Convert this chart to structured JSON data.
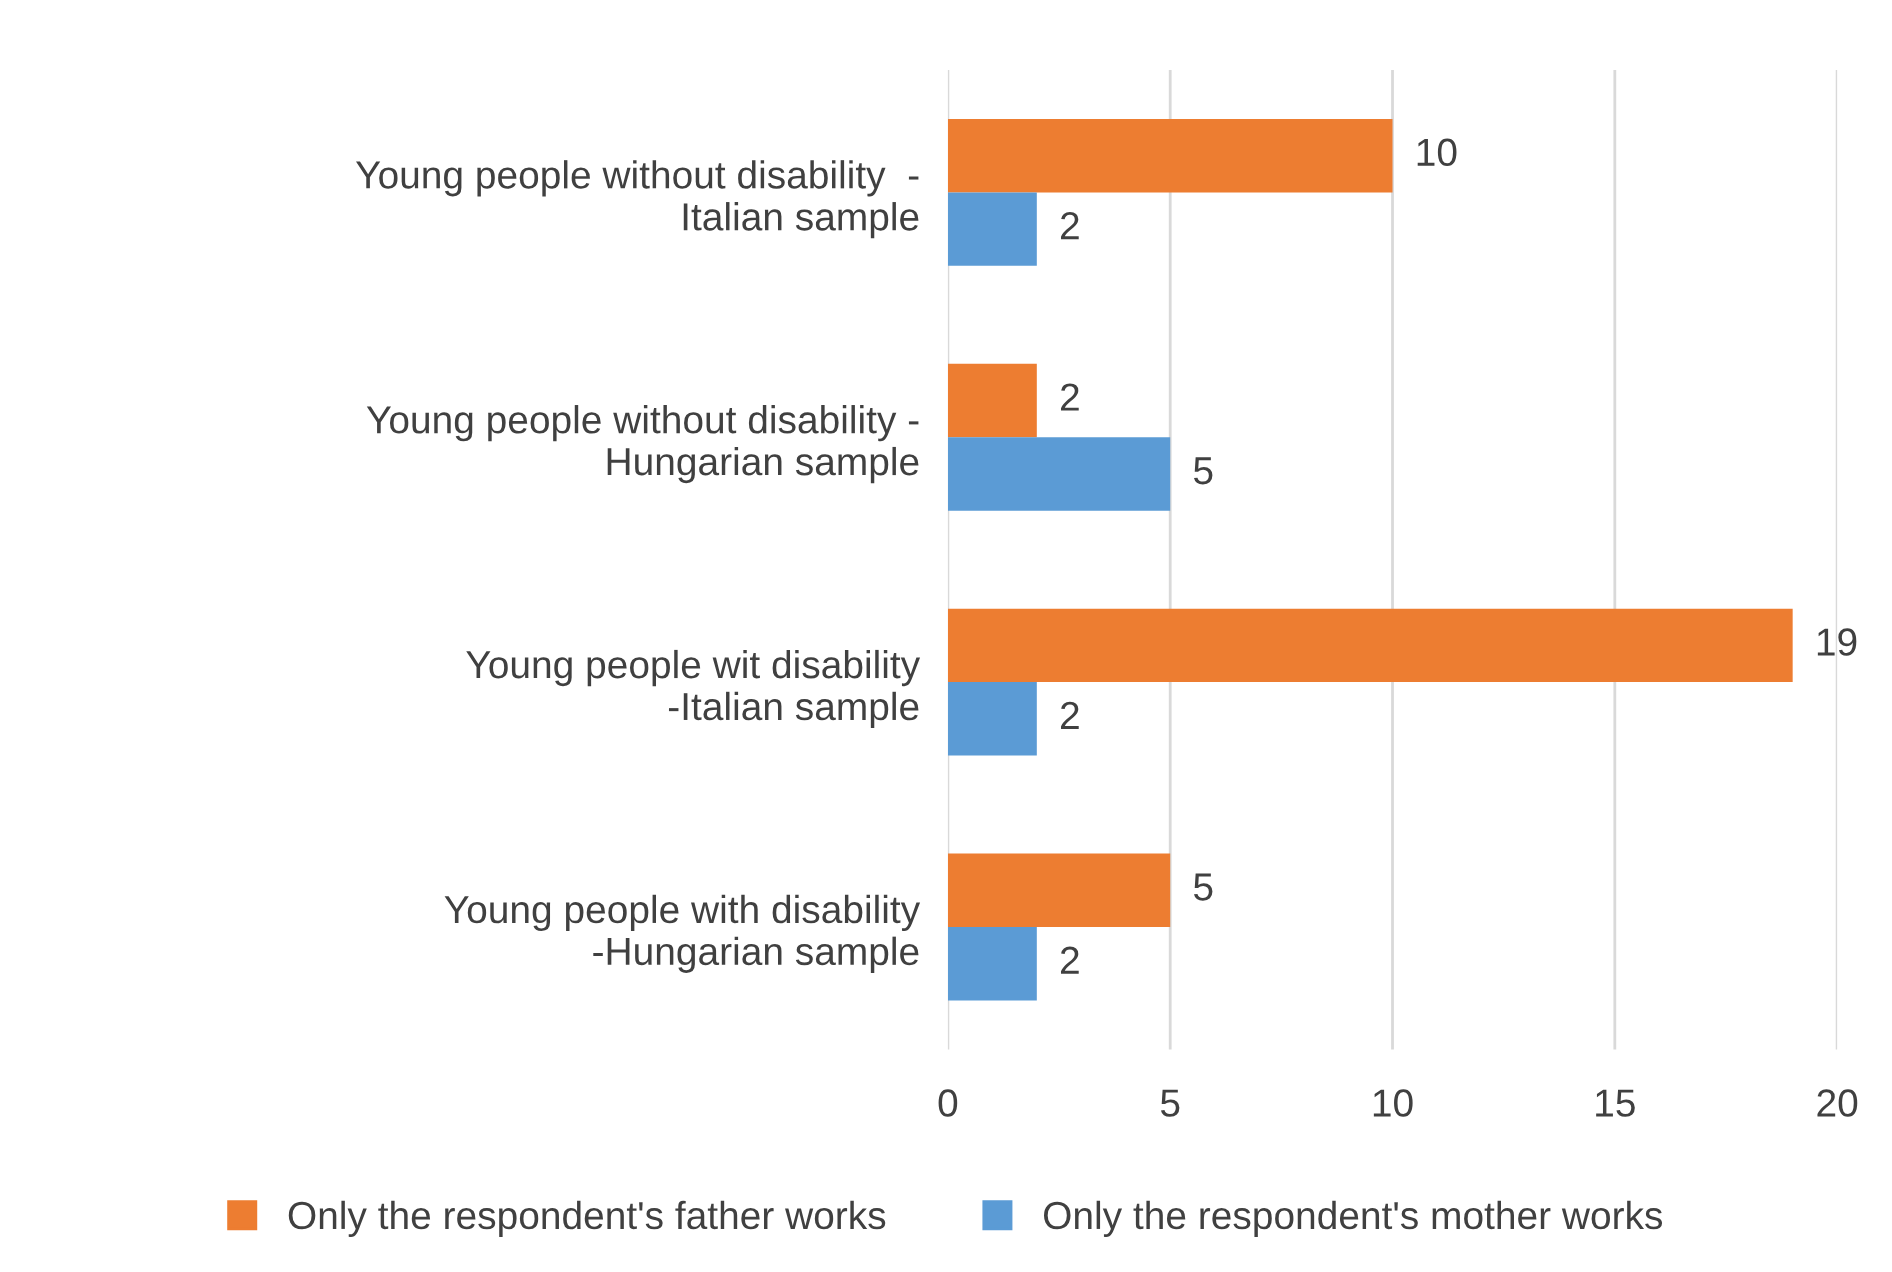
{
  "chart_data": {
    "type": "bar",
    "orientation": "horizontal",
    "categories": [
      "Young people without disability  - Italian sample",
      "Young people without disability - Hungarian sample",
      "Young people wit disability -Italian sample",
      "Young people with disability -Hungarian sample"
    ],
    "series": [
      {
        "name": "Only the respondent's father works",
        "color": "#ed7d31",
        "values": [
          10,
          2,
          19,
          5
        ]
      },
      {
        "name": "Only the respondent's mother works",
        "color": "#5b9bd5",
        "values": [
          2,
          5,
          2,
          2
        ]
      }
    ],
    "xlim": [
      0,
      20
    ],
    "xticks": [
      0,
      5,
      10,
      15,
      20
    ],
    "grid": "x",
    "legend": "bottom",
    "data_labels": true
  }
}
